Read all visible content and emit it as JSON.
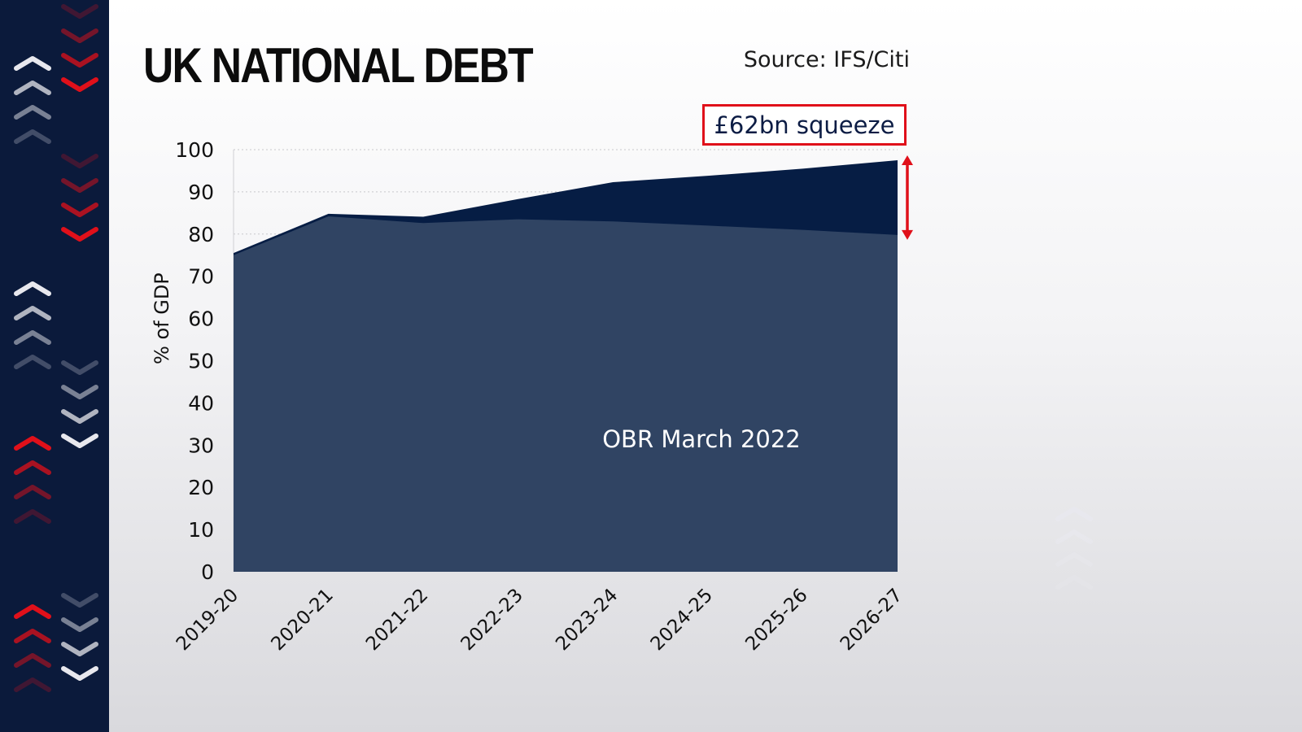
{
  "header": {
    "title": "UK NATIONAL DEBT",
    "source": "Source: IFS/Citi"
  },
  "annotation": {
    "label": "£62bn squeeze",
    "color": "#e0101a"
  },
  "colors": {
    "sidebar": "#0b1a3b",
    "baseline_area": "#304463",
    "new_area": "#061d44",
    "accent_red": "#e0101a",
    "chevron_white": "#e8e8ee"
  },
  "chart_data": {
    "type": "area",
    "x": [
      "2019-20",
      "2020-21",
      "2021-22",
      "2022-23",
      "2023-24",
      "2024-25",
      "2025-26",
      "2026-27"
    ],
    "ylabel": "% of GDP",
    "ylim": [
      0,
      100
    ],
    "yticks": [
      0,
      10,
      20,
      30,
      40,
      50,
      60,
      70,
      80,
      90,
      100
    ],
    "series": [
      {
        "name": "",
        "values": [
          75.5,
          84.8,
          84.1,
          88.3,
          92.3,
          93.8,
          95.5,
          97.5
        ],
        "color": "#061d44"
      },
      {
        "name": "OBR March 2022",
        "values": [
          75,
          84.2,
          82.6,
          83.5,
          83,
          82,
          81,
          79.8
        ],
        "color": "#304463"
      }
    ],
    "series_label": "OBR March 2022",
    "gridlines": "dotted horizontal"
  }
}
